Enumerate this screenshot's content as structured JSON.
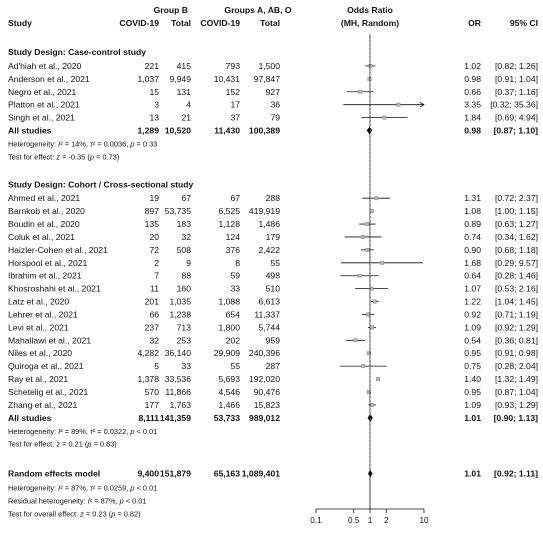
{
  "chart_data": {
    "type": "forest",
    "headers": {
      "study": "Study",
      "group_b": "Group B",
      "group_other": "Groups A, AB, O",
      "covid_b": "COVID-19",
      "total_b": "Total",
      "covid_o": "COVID-19",
      "total_o": "Total",
      "or_title_1": "Odds Ratio",
      "or_title_2": "(MH, Random)",
      "or": "OR",
      "ci": "95% CI"
    },
    "x_scale": "log",
    "x_range": [
      0.1,
      10
    ],
    "x_ticks": [
      {
        "value": 0.1,
        "label": "0.1"
      },
      {
        "value": 0.5,
        "label": "0.5"
      },
      {
        "value": 1,
        "label": "1"
      },
      {
        "value": 2,
        "label": "2"
      },
      {
        "value": 10,
        "label": "10"
      }
    ],
    "sections": [
      {
        "title": "Study Design: Case-control study",
        "studies": [
          {
            "name": "Ad'hiah et al., 2020",
            "covid_b": "221",
            "total_b": "415",
            "covid_o": "793",
            "total_o": "1,500",
            "or_text": "1.02",
            "ci_text": "[0.82; 1.26]",
            "or": 1.02,
            "lo": 0.82,
            "hi": 1.26
          },
          {
            "name": "Anderson et al., 2021",
            "covid_b": "1,037",
            "total_b": "9,949",
            "covid_o": "10,431",
            "total_o": "97,847",
            "or_text": "0.98",
            "ci_text": "[0.91; 1.04]",
            "or": 0.98,
            "lo": 0.91,
            "hi": 1.04
          },
          {
            "name": "Negro et al., 2021",
            "covid_b": "15",
            "total_b": "131",
            "covid_o": "152",
            "total_o": "927",
            "or_text": "0.66",
            "ci_text": "[0.37; 1.16]",
            "or": 0.66,
            "lo": 0.37,
            "hi": 1.16
          },
          {
            "name": "Platton et al., 2021",
            "covid_b": "3",
            "total_b": "4",
            "covid_o": "17",
            "total_o": "36",
            "or_text": "3.35",
            "ci_text": "[0.32; 35.36]",
            "or": 3.35,
            "lo": 0.32,
            "hi": 35.36
          },
          {
            "name": "Singh et al., 2021",
            "covid_b": "13",
            "total_b": "21",
            "covid_o": "37",
            "total_o": "79",
            "or_text": "1.84",
            "ci_text": "[0.69; 4.94]",
            "or": 1.84,
            "lo": 0.69,
            "hi": 4.94
          }
        ],
        "summary": {
          "name": "All studies",
          "covid_b": "1,289",
          "total_b": "10,520",
          "covid_o": "11,430",
          "total_o": "100,389",
          "or_text": "0.98",
          "ci_text": "[0.87; 1.10]",
          "or": 0.98,
          "lo": 0.87,
          "hi": 1.1
        },
        "notes": [
          "Heterogeneity: I² = 14%, τ² = 0.0036, p = 0.33",
          "Test for effect: z = -0.35 (p = 0.73)"
        ]
      },
      {
        "title": "Study Design: Cohort / Cross-sectional study",
        "studies": [
          {
            "name": "Ahmed et al., 2021",
            "covid_b": "19",
            "total_b": "67",
            "covid_o": "67",
            "total_o": "288",
            "or_text": "1.31",
            "ci_text": "[0.72; 2.37]",
            "or": 1.31,
            "lo": 0.72,
            "hi": 2.37
          },
          {
            "name": "Barnkob et al., 2020",
            "covid_b": "897",
            "total_b": "53,735",
            "covid_o": "6,525",
            "total_o": "419,919",
            "or_text": "1.08",
            "ci_text": "[1.00; 1.15]",
            "or": 1.08,
            "lo": 1.0,
            "hi": 1.15
          },
          {
            "name": "Boudin et al., 2020",
            "covid_b": "135",
            "total_b": "183",
            "covid_o": "1,128",
            "total_o": "1,486",
            "or_text": "0.89",
            "ci_text": "[0.63; 1.27]",
            "or": 0.89,
            "lo": 0.63,
            "hi": 1.27
          },
          {
            "name": "Coluk et al., 2021",
            "covid_b": "20",
            "total_b": "32",
            "covid_o": "124",
            "total_o": "179",
            "or_text": "0.74",
            "ci_text": "[0.34; 1.62]",
            "or": 0.74,
            "lo": 0.34,
            "hi": 1.62
          },
          {
            "name": "Haizler-Cohen et al., 2021",
            "covid_b": "72",
            "total_b": "508",
            "covid_o": "376",
            "total_o": "2,422",
            "or_text": "0.90",
            "ci_text": "[0.68; 1.18]",
            "or": 0.9,
            "lo": 0.68,
            "hi": 1.18
          },
          {
            "name": "Horspool et al., 2021",
            "covid_b": "2",
            "total_b": "9",
            "covid_o": "8",
            "total_o": "55",
            "or_text": "1.68",
            "ci_text": "[0.29; 9.57]",
            "or": 1.68,
            "lo": 0.29,
            "hi": 9.57
          },
          {
            "name": "Ibrahim et al., 2021",
            "covid_b": "7",
            "total_b": "88",
            "covid_o": "59",
            "total_o": "498",
            "or_text": "0.64",
            "ci_text": "[0.28; 1.46]",
            "or": 0.64,
            "lo": 0.28,
            "hi": 1.46
          },
          {
            "name": "Khosroshahi et al., 2021",
            "covid_b": "11",
            "total_b": "160",
            "covid_o": "33",
            "total_o": "510",
            "or_text": "1.07",
            "ci_text": "[0.53; 2.16]",
            "or": 1.07,
            "lo": 0.53,
            "hi": 2.16
          },
          {
            "name": "Latz et al., 2020",
            "covid_b": "201",
            "total_b": "1,035",
            "covid_o": "1,088",
            "total_o": "6,613",
            "or_text": "1.22",
            "ci_text": "[1.04; 1.45]",
            "or": 1.22,
            "lo": 1.04,
            "hi": 1.45
          },
          {
            "name": "Lehrer et al., 2021",
            "covid_b": "66",
            "total_b": "1,238",
            "covid_o": "654",
            "total_o": "11,337",
            "or_text": "0.92",
            "ci_text": "[0.71; 1.19]",
            "or": 0.92,
            "lo": 0.71,
            "hi": 1.19
          },
          {
            "name": "Levi et al., 2021",
            "covid_b": "237",
            "total_b": "713",
            "covid_o": "1,800",
            "total_o": "5,744",
            "or_text": "1.09",
            "ci_text": "[0.92; 1.29]",
            "or": 1.09,
            "lo": 0.92,
            "hi": 1.29
          },
          {
            "name": "Mahallawi et al., 2021",
            "covid_b": "32",
            "total_b": "253",
            "covid_o": "202",
            "total_o": "959",
            "or_text": "0.54",
            "ci_text": "[0.36; 0.81]",
            "or": 0.54,
            "lo": 0.36,
            "hi": 0.81
          },
          {
            "name": "Niles et al., 2020",
            "covid_b": "4,282",
            "total_b": "36,140",
            "covid_o": "29,909",
            "total_o": "240,396",
            "or_text": "0.95",
            "ci_text": "[0.91; 0.98]",
            "or": 0.95,
            "lo": 0.91,
            "hi": 0.98
          },
          {
            "name": "Quiroga et al., 2021",
            "covid_b": "5",
            "total_b": "33",
            "covid_o": "55",
            "total_o": "287",
            "or_text": "0.75",
            "ci_text": "[0.28; 2.04]",
            "or": 0.75,
            "lo": 0.28,
            "hi": 2.04
          },
          {
            "name": "Ray et al., 2021",
            "covid_b": "1,378",
            "total_b": "33,536",
            "covid_o": "5,693",
            "total_o": "192,020",
            "or_text": "1.40",
            "ci_text": "[1.32; 1.49]",
            "or": 1.4,
            "lo": 1.32,
            "hi": 1.49
          },
          {
            "name": "Schetelig et al., 2021",
            "covid_b": "570",
            "total_b": "11,866",
            "covid_o": "4,546",
            "total_o": "90,476",
            "or_text": "0.95",
            "ci_text": "[0.87; 1.04]",
            "or": 0.95,
            "lo": 0.87,
            "hi": 1.04
          },
          {
            "name": "Zhang et al., 2021",
            "covid_b": "177",
            "total_b": "1,763",
            "covid_o": "1,466",
            "total_o": "15,823",
            "or_text": "1.09",
            "ci_text": "[0.93; 1.29]",
            "or": 1.09,
            "lo": 0.93,
            "hi": 1.29
          }
        ],
        "summary": {
          "name": "All studies",
          "covid_b": "8,111",
          "total_b": "141,359",
          "covid_o": "53,733",
          "total_o": "989,012",
          "or_text": "1.01",
          "ci_text": "[0.90; 1.13]",
          "or": 1.01,
          "lo": 0.9,
          "hi": 1.13
        },
        "notes": [
          "Heterogeneity: I² = 89%, τ² = 0.0322, p < 0.01",
          "Test for effect: z = 0.21 (p = 0.83)"
        ]
      }
    ],
    "overall": {
      "name": "Random effects model",
      "covid_b": "9,400",
      "total_b": "151,879",
      "covid_o": "65,163",
      "total_o": "1,089,401",
      "or_text": "1.01",
      "ci_text": "[0.92; 1.11]",
      "or": 1.01,
      "lo": 0.92,
      "hi": 1.11,
      "notes": [
        "Heterogeneity: I² = 87%, τ² = 0.0259, p < 0.01",
        "Residual heterogeneity: I² = 87%, p < 0.01",
        "Test for overall effect: z = 0.23 (p = 0.82)"
      ]
    }
  }
}
